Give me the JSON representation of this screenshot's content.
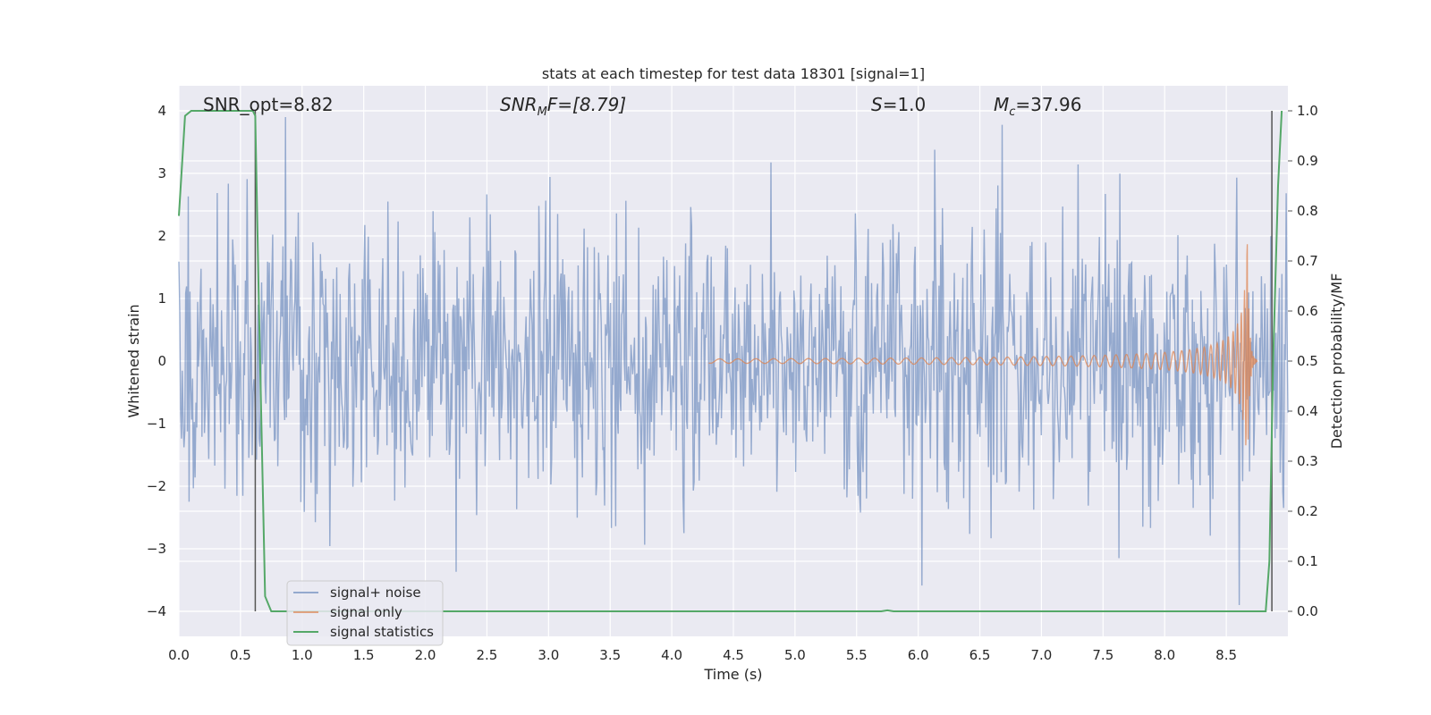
{
  "chart_data": {
    "type": "line",
    "title": "stats at each timestep for test data 18301 [signal=1]",
    "xlabel": "Time (s)",
    "ylabel": "Whitened strain",
    "ylabel_right": "Detection probability/MF",
    "xlim": [
      0.0,
      9.0
    ],
    "ylim": [
      -4.4,
      4.4
    ],
    "ylim_right": [
      -0.05,
      1.05
    ],
    "x_ticks": [
      "0.0",
      "0.5",
      "1.0",
      "1.5",
      "2.0",
      "2.5",
      "3.0",
      "3.5",
      "4.0",
      "4.5",
      "5.0",
      "5.5",
      "6.0",
      "6.5",
      "7.0",
      "7.5",
      "8.0",
      "8.5"
    ],
    "y_ticks": [
      "4",
      "3",
      "2",
      "1",
      "0",
      "−1",
      "−2",
      "−3",
      "−4"
    ],
    "y_ticks_right": [
      "1.0",
      "0.9",
      "0.8",
      "0.7",
      "0.6",
      "0.5",
      "0.4",
      "0.3",
      "0.2",
      "0.1",
      "0.0"
    ],
    "grid": true,
    "legend_placement": "lower-left",
    "annotations": {
      "snr_opt": "SNR_opt=8.82",
      "snr_mf_base": "SNR",
      "snr_mf_sub": "M",
      "snr_mf_rest": "F=[8.79]",
      "s_base": "S",
      "s_rest": "=1.0",
      "mc_base": "M",
      "mc_sub": "c",
      "mc_rest": "=37.96"
    },
    "series": [
      {
        "name": "signal+ noise",
        "color": "#4c72b0",
        "description_style": "dense noise trace, amplitude about ±2 with spikes to about ±3.8",
        "noise_envelope": 2.0
      },
      {
        "name": "signal only",
        "color": "#dd8452",
        "description_style": "chirp oscillation growing toward merger",
        "chirp_start": 4.3,
        "merger_time": 8.67,
        "peak_amplitude": 2.0
      },
      {
        "name": "signal statistics",
        "color": "#55a868",
        "axis": "right",
        "x": [
          0.0,
          0.05,
          0.1,
          0.3,
          0.5,
          0.6,
          0.62,
          0.65,
          0.7,
          0.75,
          1.0,
          2.0,
          3.0,
          4.0,
          5.0,
          5.5,
          5.7,
          5.75,
          5.8,
          6.0,
          7.0,
          8.0,
          8.5,
          8.82,
          8.85,
          8.88,
          8.92,
          8.95
        ],
        "y": [
          0.79,
          0.99,
          1.0,
          1.0,
          1.0,
          1.0,
          0.99,
          0.6,
          0.03,
          0.0,
          0.0,
          0.0,
          0.0,
          0.0,
          0.0,
          0.0,
          0.0,
          0.002,
          0.0,
          0.0,
          0.0,
          0.0,
          0.0,
          0.0,
          0.1,
          0.5,
          0.85,
          1.0
        ]
      }
    ],
    "vertical_lines": [
      0.62,
      8.87
    ]
  }
}
